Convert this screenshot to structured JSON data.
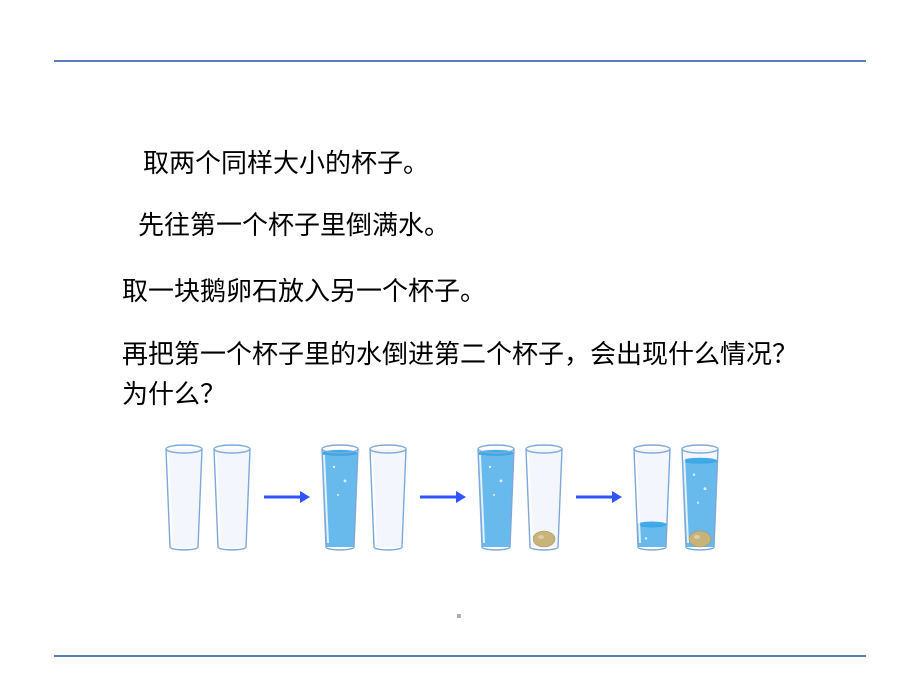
{
  "rule": {
    "color": "#5a7fb8"
  },
  "text": {
    "line1": "取两个同样大小的杯子。",
    "line2": "先往第一个杯子里倒满水。",
    "line3": "取一块鹅卵石放入另一个杯子。",
    "line4": "再把第一个杯子里的水倒进第二个杯子，会出现什么情况？为什么？"
  },
  "font": {
    "size_pt": 26,
    "color": "#000000"
  },
  "diagram": {
    "arrow_color": "#2f54ff",
    "glass_stroke": "#7fa8d8",
    "glass_fill": "#eaf1fb",
    "water_color": "#3aa6e6",
    "stone_color": "#c8b47a",
    "stages": [
      {
        "left": {
          "water": 0.0,
          "stone": false
        },
        "right": {
          "water": 0.0,
          "stone": false
        }
      },
      {
        "left": {
          "water": 0.96,
          "stone": false
        },
        "right": {
          "water": 0.0,
          "stone": false
        }
      },
      {
        "left": {
          "water": 0.96,
          "stone": false
        },
        "right": {
          "water": 0.0,
          "stone": true
        }
      },
      {
        "left": {
          "water": 0.23,
          "stone": false
        },
        "right": {
          "water": 0.88,
          "stone": true
        }
      }
    ]
  }
}
